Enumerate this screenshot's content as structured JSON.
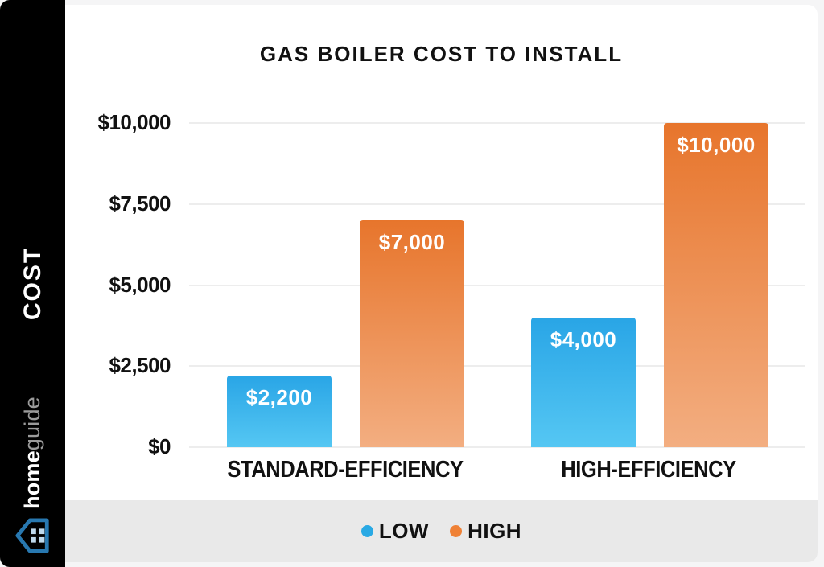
{
  "title": "GAS BOILER COST TO INSTALL",
  "sidebar": {
    "axis_label": "COST",
    "brand_bold": "home",
    "brand_light": "guide"
  },
  "chart_data": {
    "type": "bar",
    "categories": [
      "STANDARD-EFFICIENCY",
      "HIGH-EFFICIENCY"
    ],
    "series": [
      {
        "name": "LOW",
        "values": [
          2200,
          4000
        ],
        "labels": [
          "$2,200",
          "$4,000"
        ],
        "gradient_top": "#29A5E6",
        "gradient_bottom": "#55C7F3"
      },
      {
        "name": "HIGH",
        "values": [
          7000,
          10000
        ],
        "labels": [
          "$7,000",
          "$10,000"
        ],
        "gradient_top": "#E7752C",
        "gradient_bottom": "#F3AE81"
      }
    ],
    "ylabel": "COST",
    "ylim": [
      0,
      10000
    ],
    "yticks": [
      {
        "value": 0,
        "label": "$0"
      },
      {
        "value": 2500,
        "label": "$2,500"
      },
      {
        "value": 5000,
        "label": "$5,000"
      },
      {
        "value": 7500,
        "label": "$7,500"
      },
      {
        "value": 10000,
        "label": "$10,000"
      }
    ],
    "grid": true,
    "legend_position": "bottom"
  },
  "legend": {
    "items": [
      {
        "label": "LOW",
        "color": "#29A9E4"
      },
      {
        "label": "HIGH",
        "color": "#EF8136"
      }
    ]
  },
  "colors": {
    "page_bg": "#F5F5F6",
    "card_bg": "#FFFFFF",
    "sidebar_bg": "#000000",
    "legend_band_bg": "#E9E9E9",
    "gridline": "#EDEDED",
    "title_text": "#111111",
    "tick_text": "#111111",
    "value_label_text": "#FFFFFF",
    "brand_guide_text": "#9B9B9B",
    "logo_blue": "#2878B0"
  }
}
